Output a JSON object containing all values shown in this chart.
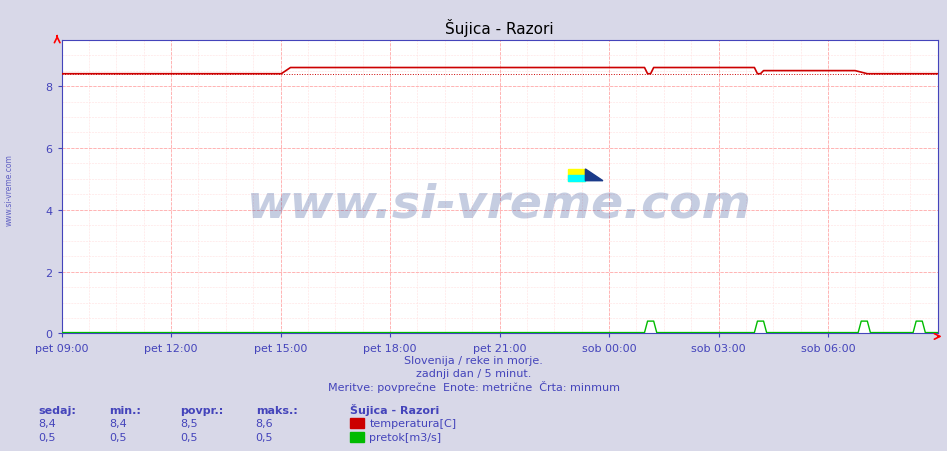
{
  "title": "Šujica - Razori",
  "bg_color": "#d8d8e8",
  "plot_bg_color": "#ffffff",
  "grid_color_major": "#ffaaaa",
  "grid_color_minor": "#ffe0e0",
  "x_label_color": "#4444bb",
  "y_label_color": "#4444bb",
  "temp_line_color": "#cc0000",
  "flow_line_color": "#00bb00",
  "ylim": [
    0,
    9.5
  ],
  "yticks": [
    0,
    2,
    4,
    6,
    8
  ],
  "n_points": 288,
  "temp_base": 8.4,
  "temp_high": 8.6,
  "temp_min_value": 8.4,
  "xtick_labels": [
    "pet 09:00",
    "pet 12:00",
    "pet 15:00",
    "pet 18:00",
    "pet 21:00",
    "sob 00:00",
    "sob 03:00",
    "sob 06:00"
  ],
  "footer_line1": "Slovenija / reke in morje.",
  "footer_line2": "zadnji dan / 5 minut.",
  "footer_line3": "Meritve: povprečne  Enote: metrične  Črta: minmum",
  "legend_title": "Šujica - Razori",
  "legend_temp": "temperatura[C]",
  "legend_flow": "pretok[m3/s]",
  "table_headers": [
    "sedaj:",
    "min.:",
    "povpr.:",
    "maks.:"
  ],
  "table_temp": [
    "8,4",
    "8,4",
    "8,5",
    "8,6"
  ],
  "table_flow": [
    "0,5",
    "0,5",
    "0,5",
    "0,5"
  ],
  "watermark": "www.si-vreme.com",
  "watermark_color": "#1a3a8a",
  "watermark_alpha": 0.25,
  "left_label": "www.si-vreme.com",
  "title_fontsize": 11,
  "axis_fontsize": 8,
  "footer_fontsize": 8,
  "table_fontsize": 8
}
